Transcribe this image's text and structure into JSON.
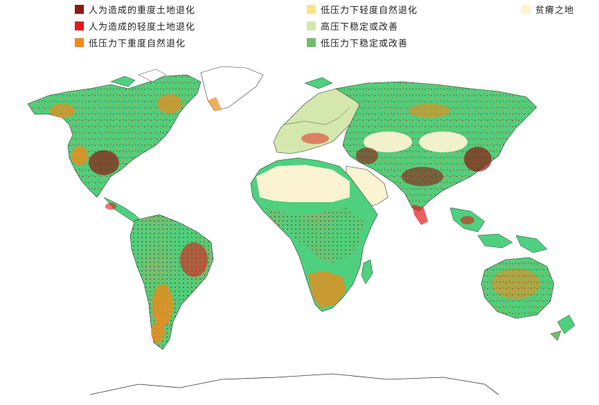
{
  "legend": {
    "items": [
      {
        "label": "人为造成的重度土地退化",
        "color": "#8b1a12"
      },
      {
        "label": "人为造成的轻度土地退化",
        "color": "#e01b1b"
      },
      {
        "label": "低压力下重度自然退化",
        "color": "#f08a1a"
      },
      {
        "label": "低压力下轻度自然退化",
        "color": "#fde28a"
      },
      {
        "label": "高压下稳定或改善",
        "color": "#d4e7ad"
      },
      {
        "label": "低压力下稳定或改善",
        "color": "#72bd6a"
      },
      {
        "label": "贫瘠之地",
        "color": "#fbf3d2"
      }
    ]
  },
  "map": {
    "ocean_color": "#ffffff",
    "land_green": "#4ed07e",
    "border_color": "#333333"
  }
}
